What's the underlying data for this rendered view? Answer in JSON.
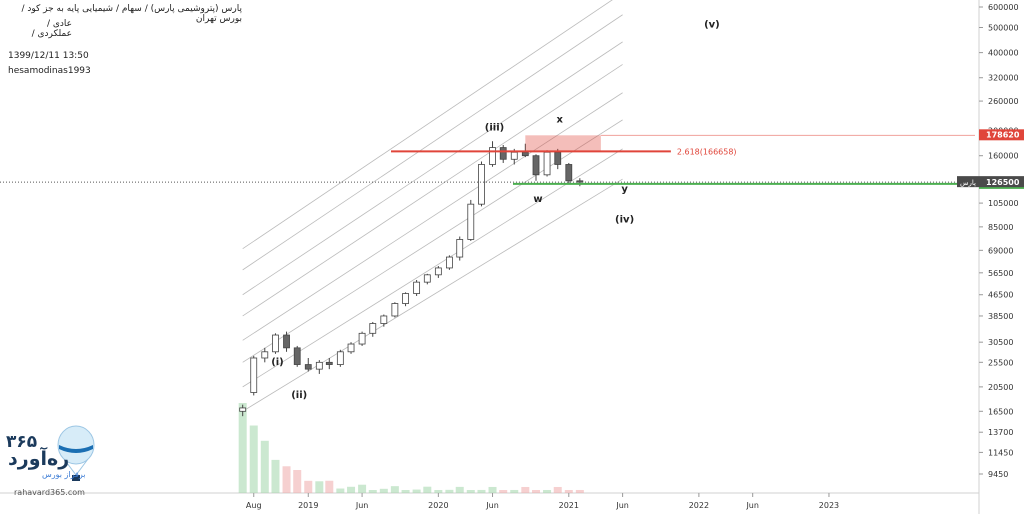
{
  "header": {
    "line1": "پارس (پتروشیمی پارس) / سهام / شیمیایی پایه به جز کود / بورس تهران",
    "line2": "عادی / عملکردی /"
  },
  "meta": {
    "datetime": "1399/12/11 13:50",
    "author": "hesamodinas1993"
  },
  "logo": {
    "number": "۳۶۵",
    "name": "ره‌آورد",
    "tagline": "برفراز بورس",
    "url": "rahavard365.com"
  },
  "colors": {
    "bull": "#555555",
    "bear": "#666666",
    "resistance": "#e0453a",
    "support": "#4caf50",
    "channel": "#bbbbbb",
    "last_price_tag": "#4a4a4a"
  },
  "chart_data": {
    "type": "candlestick",
    "scale": "log",
    "y_axis_ticks": [
      "600000",
      "500000",
      "400000",
      "320000",
      "260000",
      "200000",
      "160000",
      "126500",
      "105000",
      "85000",
      "69000",
      "56500",
      "46500",
      "38500",
      "30500",
      "25500",
      "20500",
      "16500",
      "13700",
      "11450",
      "9450"
    ],
    "x_axis_ticks": [
      "Aug",
      "2019",
      "Jun",
      "2020",
      "Jun",
      "2021",
      "Jun",
      "2022",
      "Jun",
      "2023"
    ],
    "last_price": {
      "value": 126500,
      "label": "پارس",
      "price_label": "126500"
    },
    "resistance": {
      "value": 178620,
      "price_label": "178620",
      "fib_label": "2.618(166658)"
    },
    "support": {
      "value": 119115,
      "price_label": "119115"
    },
    "wave_labels": [
      "(i)",
      "(ii)",
      "(iii)",
      "(iv)",
      "(v)",
      "w",
      "x",
      "y"
    ],
    "series": [
      {
        "date": "2018-07",
        "open": 16500,
        "high": 17500,
        "low": 15800,
        "close": 17000
      },
      {
        "date": "2018-08",
        "open": 19500,
        "high": 27000,
        "low": 19000,
        "close": 26500
      },
      {
        "date": "2018-09",
        "open": 26500,
        "high": 29000,
        "low": 25500,
        "close": 28000
      },
      {
        "date": "2018-10",
        "open": 28000,
        "high": 33000,
        "low": 27500,
        "close": 32500
      },
      {
        "date": "2018-11",
        "open": 32500,
        "high": 33500,
        "low": 28000,
        "close": 29000
      },
      {
        "date": "2018-12",
        "open": 29000,
        "high": 29500,
        "low": 24500,
        "close": 25000
      },
      {
        "date": "2019-01",
        "open": 25000,
        "high": 26500,
        "low": 23500,
        "close": 24000
      },
      {
        "date": "2019-02",
        "open": 24000,
        "high": 26000,
        "low": 23000,
        "close": 25500
      },
      {
        "date": "2019-03",
        "open": 25500,
        "high": 26500,
        "low": 24000,
        "close": 25000
      },
      {
        "date": "2019-04",
        "open": 25000,
        "high": 28500,
        "low": 24500,
        "close": 28000
      },
      {
        "date": "2019-05",
        "open": 28000,
        "high": 30500,
        "low": 27500,
        "close": 30000
      },
      {
        "date": "2019-06",
        "open": 30000,
        "high": 33500,
        "low": 29500,
        "close": 33000
      },
      {
        "date": "2019-07",
        "open": 33000,
        "high": 36500,
        "low": 32000,
        "close": 36000
      },
      {
        "date": "2019-08",
        "open": 36000,
        "high": 39000,
        "low": 35000,
        "close": 38500
      },
      {
        "date": "2019-09",
        "open": 38500,
        "high": 43500,
        "low": 38000,
        "close": 43000
      },
      {
        "date": "2019-10",
        "open": 43000,
        "high": 47500,
        "low": 42000,
        "close": 47000
      },
      {
        "date": "2019-11",
        "open": 47000,
        "high": 53000,
        "low": 46000,
        "close": 52000
      },
      {
        "date": "2019-12",
        "open": 52000,
        "high": 56000,
        "low": 51000,
        "close": 55500
      },
      {
        "date": "2020-01",
        "open": 55500,
        "high": 60000,
        "low": 54000,
        "close": 59000
      },
      {
        "date": "2020-02",
        "open": 59000,
        "high": 66000,
        "low": 58000,
        "close": 65000
      },
      {
        "date": "2020-03",
        "open": 65000,
        "high": 78000,
        "low": 63000,
        "close": 76000
      },
      {
        "date": "2020-04",
        "open": 76000,
        "high": 108000,
        "low": 75000,
        "close": 104000
      },
      {
        "date": "2020-05",
        "open": 104000,
        "high": 152000,
        "low": 102000,
        "close": 148000
      },
      {
        "date": "2020-06",
        "open": 148000,
        "high": 182000,
        "low": 145000,
        "close": 172000
      },
      {
        "date": "2020-07",
        "open": 172000,
        "high": 176000,
        "low": 150000,
        "close": 155000
      },
      {
        "date": "2020-08",
        "open": 155000,
        "high": 170000,
        "low": 148000,
        "close": 165000
      },
      {
        "date": "2020-09",
        "open": 165000,
        "high": 178000,
        "low": 158000,
        "close": 160000
      },
      {
        "date": "2020-10",
        "open": 160000,
        "high": 162000,
        "low": 128000,
        "close": 135000
      },
      {
        "date": "2020-11",
        "open": 135000,
        "high": 168000,
        "low": 133000,
        "close": 165000
      },
      {
        "date": "2020-12",
        "open": 165000,
        "high": 170000,
        "low": 142000,
        "close": 148000
      },
      {
        "date": "2021-01",
        "open": 148000,
        "high": 150000,
        "low": 124000,
        "close": 128000
      },
      {
        "date": "2021-02",
        "open": 128000,
        "high": 131000,
        "low": 122000,
        "close": 126500
      }
    ]
  }
}
